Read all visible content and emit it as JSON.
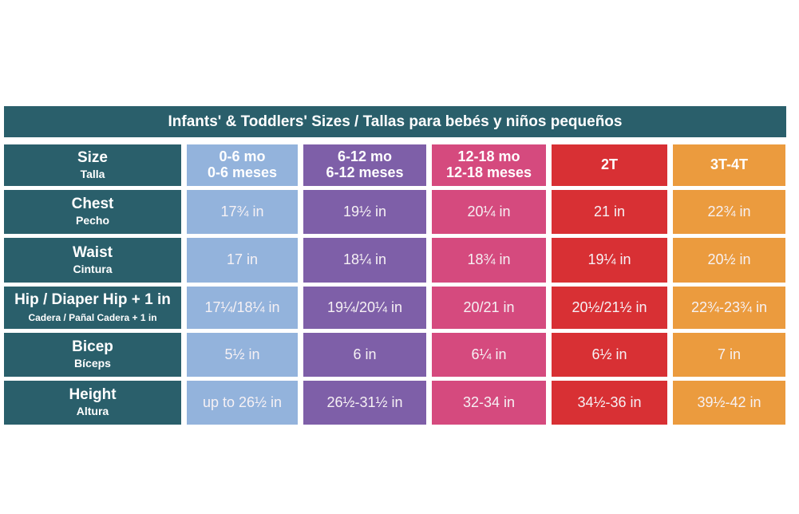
{
  "title": "Infants' & Toddlers' Sizes / Tallas para bebés y niños pequeños",
  "colors": {
    "label": "#2a5f6b",
    "col1": "#93b3dc",
    "col2": "#7e5fa8",
    "col3": "#d54a7e",
    "col4": "#d83034",
    "col5": "#eb9b3e"
  },
  "header": {
    "label": {
      "en": "Size",
      "es": "Talla"
    },
    "sizes": [
      {
        "en": "0-6 mo",
        "es": "0-6 meses"
      },
      {
        "en": "6-12 mo",
        "es": "6-12 meses"
      },
      {
        "en": "12-18 mo",
        "es": "12-18 meses"
      },
      {
        "en": "2T",
        "es": ""
      },
      {
        "en": "3T-4T",
        "es": ""
      }
    ]
  },
  "rows": [
    {
      "en": "Chest",
      "es": "Pecho",
      "values": [
        "17¾ in",
        "19½ in",
        "20¼ in",
        "21 in",
        "22¾ in"
      ]
    },
    {
      "en": "Waist",
      "es": "Cintura",
      "values": [
        "17 in",
        "18¼  in",
        "18¾ in",
        "19¼  in",
        "20½ in"
      ]
    },
    {
      "en": "Hip / Diaper Hip + 1 in",
      "es": "Cadera / Pañal Cadera + 1 in",
      "values": [
        "17¼/18¼  in",
        "19¼/20¼  in",
        "20/21 in",
        "20½/21½ in",
        "22¾-23¾ in"
      ]
    },
    {
      "en": "Bicep",
      "es": "Bíceps",
      "values": [
        "5½ in",
        "6 in",
        "6¼  in",
        "6½ in",
        "7 in"
      ]
    },
    {
      "en": "Height",
      "es": "Altura",
      "values": [
        "up to 26½ in",
        "26½-31½ in",
        "32-34 in",
        "34½-36 in",
        "39½-42 in"
      ]
    }
  ]
}
